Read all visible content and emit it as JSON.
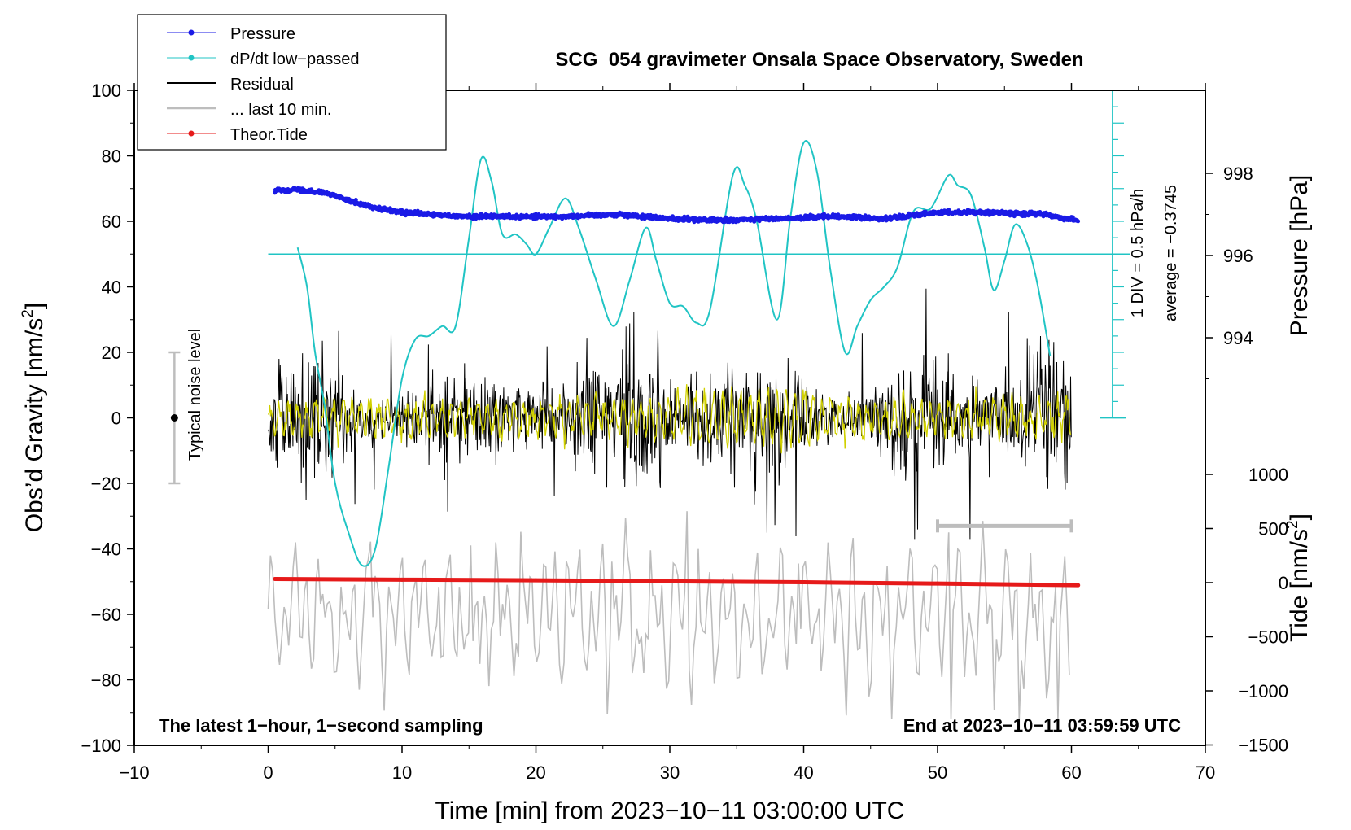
{
  "chart_data": {
    "type": "line",
    "title": "SCG_054 gravimeter Onsala Space Observatory, Sweden",
    "xlabel": "Time [min] from 2023−10−11 03:00:00 UTC",
    "ylabel": "Obs’d Gravity [nm/s²]",
    "ylabel_main": "Obs’d Gravity [nm/s",
    "ylabel_sup": "2",
    "ylabel_close": "]",
    "y2label_pressure": "Pressure [hPa]",
    "y2label_tide_main": "Tide [nm/s",
    "y2label_tide_sup": "2",
    "y2label_tide_close": "]",
    "xlim": [
      -10,
      70
    ],
    "ylim": [
      -100,
      100
    ],
    "x_ticks": [
      "−10",
      "0",
      "10",
      "20",
      "30",
      "40",
      "50",
      "60",
      "70"
    ],
    "y_ticks": [
      "100",
      "80",
      "60",
      "40",
      "20",
      "0",
      "−20",
      "−40",
      "−60",
      "−80",
      "−100"
    ],
    "pressure_ticks": [
      "998",
      "996",
      "994"
    ],
    "tide_ticks": [
      "1000",
      "500",
      "0",
      "−500",
      "−1000",
      "−1500"
    ],
    "legend": [
      {
        "label": "Pressure",
        "color": "#1a1ae6",
        "marker": "dot"
      },
      {
        "label": "dP/dt low−passed",
        "color": "#20c4c4",
        "marker": "dot"
      },
      {
        "label": "Residual",
        "color": "#000000",
        "marker": "line"
      },
      {
        "label": "... last 10 min.",
        "color": "#bdbdbd",
        "marker": "line"
      },
      {
        "label": "Theor.Tide",
        "color": "#e61a1a",
        "marker": "dot"
      }
    ],
    "legend_position": "top-left",
    "annotations": {
      "noise_label": "Typical noise level",
      "div_label": "1 DIV = 0.5 hPa/h",
      "average_label": "average = −0.3745",
      "bottom_left": "The latest 1−hour, 1−second sampling",
      "bottom_right": "End at 2023−10−11 03:59:59 UTC"
    },
    "noise_range": [
      -20,
      20
    ],
    "noise_x": -7,
    "last10_bar": [
      50,
      60
    ],
    "last10_bar_y": -33,
    "pressure_series": {
      "name": "Pressure",
      "x": [
        0.5,
        2,
        4,
        6,
        8,
        10,
        14,
        18,
        22,
        26,
        30,
        34,
        38,
        42,
        46,
        50,
        54,
        58,
        60.5
      ],
      "y_hpa": [
        997.6,
        997.6,
        997.55,
        997.35,
        997.15,
        997.05,
        996.95,
        996.95,
        996.95,
        997.0,
        996.9,
        996.85,
        996.9,
        996.95,
        996.9,
        997.05,
        997.05,
        997.0,
        996.85
      ]
    },
    "dpdt_series": {
      "name": "dP/dt low−passed",
      "baseline_y": 50,
      "x": [
        2.2,
        2.9,
        3.5,
        4.2,
        5,
        6,
        7,
        8,
        9,
        10,
        11,
        12,
        13,
        14,
        15,
        15.9,
        16.7,
        17.5,
        18.5,
        19.3,
        20,
        21,
        22.2,
        23.2,
        24.5,
        25.8,
        27,
        28.2,
        29,
        30,
        31,
        32,
        33,
        34.7,
        35.6,
        36.5,
        38,
        39,
        40,
        41,
        42,
        43.1,
        44,
        45,
        46,
        47,
        48.2,
        49.5,
        50.8,
        51.5,
        52.5,
        53.5,
        54.2,
        55,
        55.8,
        56.7,
        57.5,
        58.4
      ],
      "y": [
        52,
        40,
        20,
        4,
        -20,
        -35,
        -45,
        -40,
        -15,
        12,
        24,
        25,
        28,
        28,
        55,
        79,
        72,
        56,
        56,
        53,
        50,
        58,
        67,
        58,
        42,
        28,
        42,
        58,
        48,
        35,
        34,
        29,
        33,
        74,
        71,
        60,
        30,
        61,
        84,
        75,
        45,
        20,
        28,
        36,
        40,
        46,
        63,
        64,
        74,
        71,
        68,
        52,
        39,
        48,
        59,
        53,
        40,
        19
      ]
    },
    "residual_series": {
      "name": "Residual",
      "x_range": [
        0,
        60
      ],
      "amplitude_nm_s2": [
        -37,
        40
      ],
      "note": "dense 1−second sampled residual, roughly ±15 nm/s² noise with spikes"
    },
    "last10_series": {
      "name": "... last 10 min.",
      "x_range": [
        0,
        60
      ],
      "centered_y": -60,
      "amplitude_nm_s2": [
        -92,
        -28
      ]
    },
    "tide_series": {
      "name": "Theor.Tide",
      "x": [
        0.5,
        10,
        20,
        30,
        40,
        50,
        60.5
      ],
      "y": [
        -49.2,
        -49.4,
        -49.6,
        -49.9,
        -50.2,
        -50.6,
        -51.1
      ]
    },
    "colors": {
      "pressure": "#1a1ae6",
      "dpdt": "#20c4c4",
      "residual": "#000000",
      "last10": "#bdbdbd",
      "tide": "#e61a1a",
      "filtered": "#d0d000"
    }
  }
}
